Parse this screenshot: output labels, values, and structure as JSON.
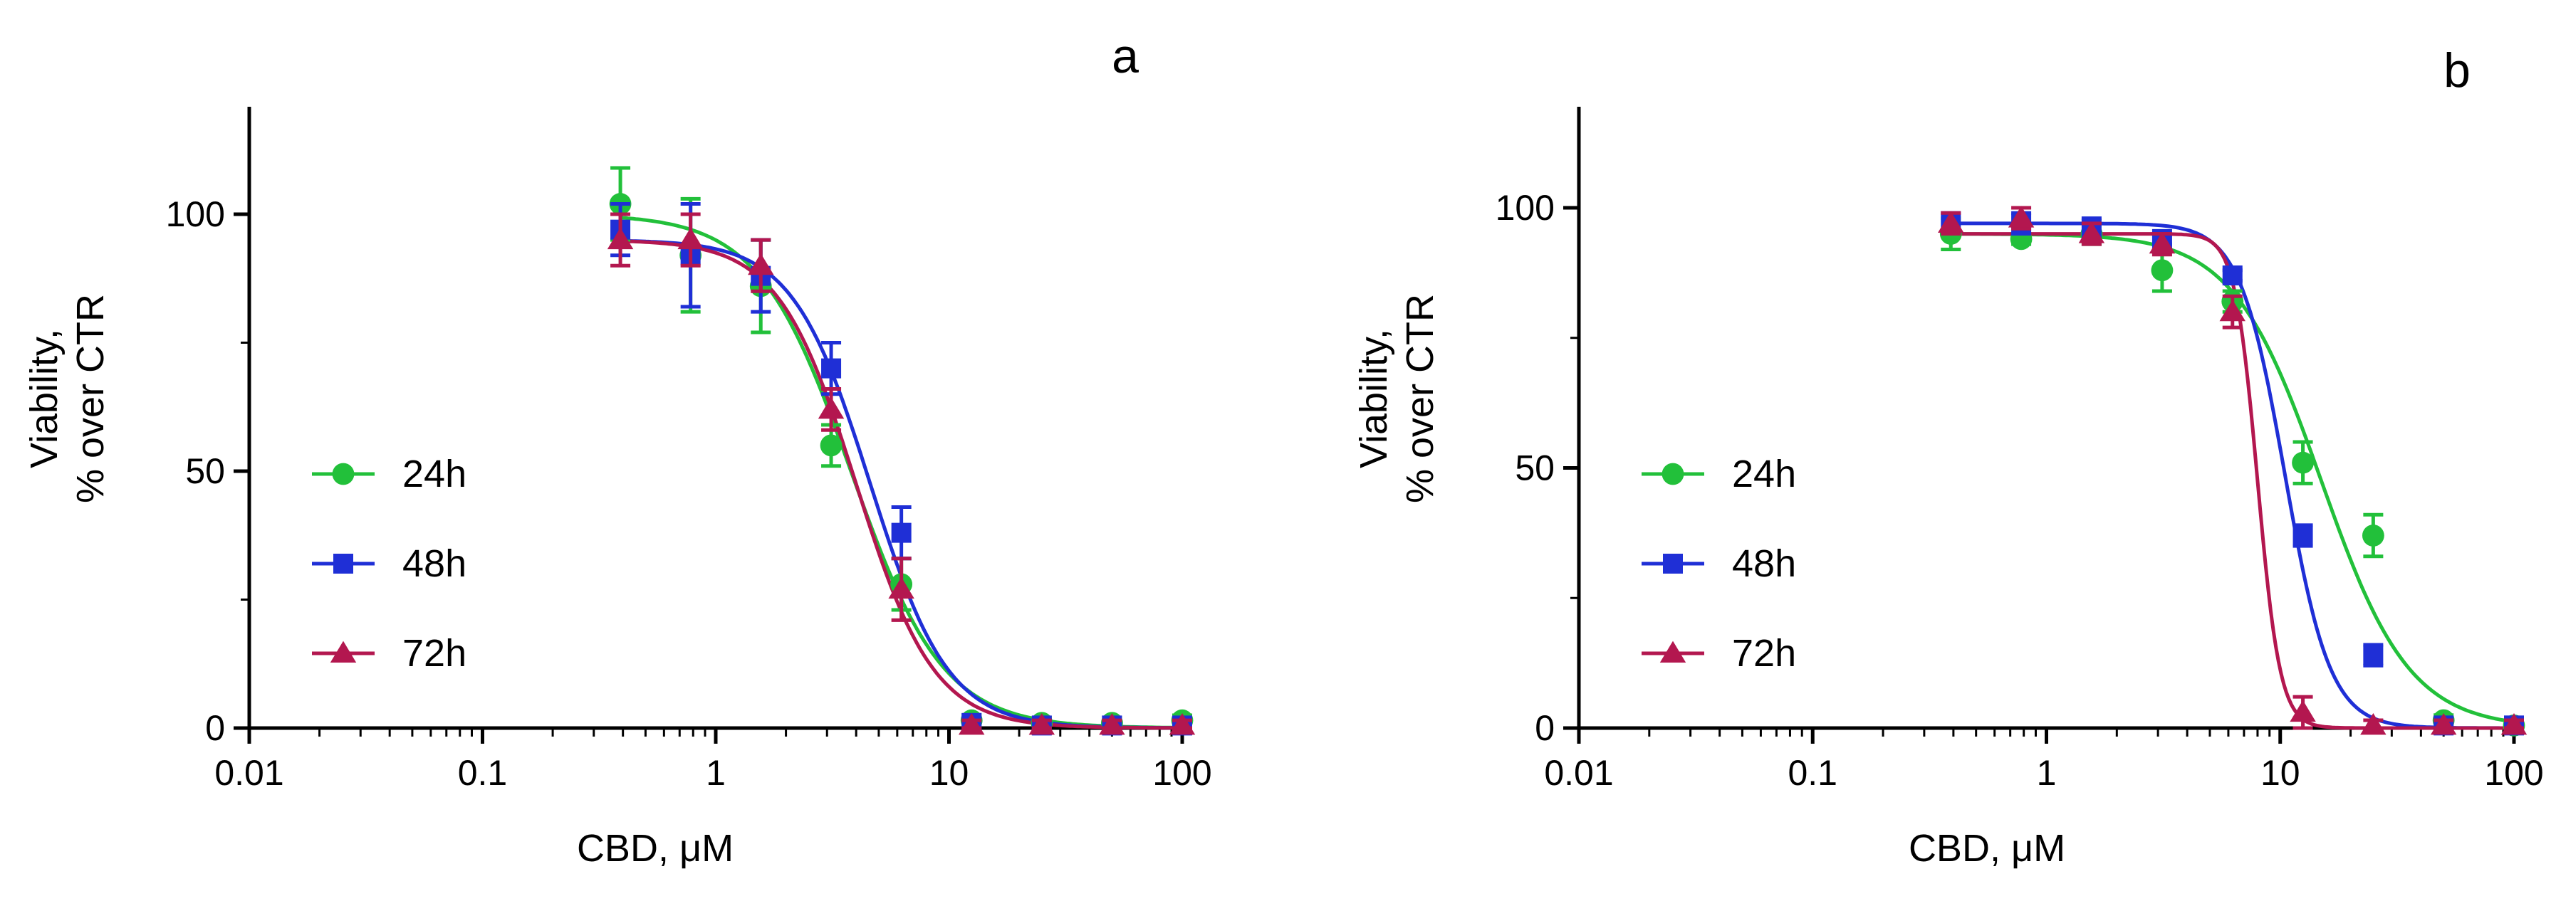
{
  "colors": {
    "24h": "#22c03a",
    "48h": "#1f2fd6",
    "72h": "#b3174f"
  },
  "chart_data": [
    {
      "panel_label": "a",
      "type": "scatter",
      "xscale": "log",
      "xlim": [
        0.01,
        100
      ],
      "ylim": [
        0,
        120
      ],
      "xticks": [
        0.01,
        0.1,
        1,
        10,
        100
      ],
      "xtick_labels": [
        "0.01",
        "0.1",
        "1",
        "10",
        "100"
      ],
      "yticks": [
        0,
        50,
        100
      ],
      "ytick_labels": [
        "0",
        "50",
        "100"
      ],
      "xlabel": "CBD, μM",
      "ylabel": [
        "Viability,",
        "% over CTR"
      ],
      "x": [
        0.39,
        0.78,
        1.56,
        3.125,
        6.25,
        12.5,
        25,
        50,
        100
      ],
      "series": [
        {
          "name": "24h",
          "marker": "circle",
          "values": [
            102,
            92,
            86,
            55,
            28,
            1.5,
            1,
            1,
            1.5
          ],
          "errors": [
            7,
            11,
            9,
            4,
            5,
            1,
            1,
            1,
            1
          ],
          "fit": {
            "top": 100,
            "bottom": 0,
            "ec50": 3.8,
            "hill": 2.2
          }
        },
        {
          "name": "48h",
          "marker": "square",
          "values": [
            97,
            92,
            88,
            70,
            38,
            1,
            0.5,
            0.5,
            0.5
          ],
          "errors": [
            5,
            10,
            7,
            5,
            5,
            1,
            1,
            1,
            1
          ],
          "fit": {
            "top": 95,
            "bottom": 0,
            "ec50": 4.6,
            "hill": 2.6
          }
        },
        {
          "name": "72h",
          "marker": "triangle",
          "values": [
            95,
            95,
            90,
            62,
            27,
            0.5,
            0.5,
            0.5,
            0.5
          ],
          "errors": [
            5,
            5,
            5,
            4,
            6,
            1,
            1,
            1,
            1
          ],
          "fit": {
            "top": 95,
            "bottom": 0,
            "ec50": 4.0,
            "hill": 2.6
          }
        }
      ]
    },
    {
      "panel_label": "b",
      "type": "scatter",
      "xscale": "log",
      "xlim": [
        0.01,
        100
      ],
      "ylim": [
        0,
        120
      ],
      "xticks": [
        0.01,
        0.1,
        1,
        10,
        100
      ],
      "xtick_labels": [
        "0.01",
        "0.1",
        "1",
        "10",
        "100"
      ],
      "yticks": [
        0,
        50,
        100
      ],
      "ytick_labels": [
        "0",
        "50",
        "100"
      ],
      "xlabel": "CBD, μM",
      "ylabel": [
        "Viability,",
        "% over CTR"
      ],
      "x": [
        0.39,
        0.78,
        1.56,
        3.125,
        6.25,
        12.5,
        25,
        50,
        100
      ],
      "series": [
        {
          "name": "24h",
          "marker": "circle",
          "values": [
            95,
            94,
            95,
            88,
            82,
            51,
            37,
            1.5,
            0.5
          ],
          "errors": [
            3,
            1,
            2,
            4,
            2,
            4,
            4,
            1,
            1
          ],
          "fit": {
            "top": 95,
            "bottom": 0,
            "ec50": 15,
            "hill": 2.3
          }
        },
        {
          "name": "48h",
          "marker": "square",
          "values": [
            97,
            97,
            96,
            94,
            87,
            37,
            14,
            0.5,
            0.5
          ],
          "errors": [
            2,
            2,
            2,
            1,
            1,
            2,
            2,
            1,
            1
          ],
          "fit": {
            "top": 97,
            "bottom": 0,
            "ec50": 10.5,
            "hill": 4.5
          }
        },
        {
          "name": "72h",
          "marker": "triangle",
          "values": [
            97,
            98,
            95,
            93,
            80,
            3,
            0.5,
            0.5,
            0.5
          ],
          "errors": [
            2,
            2,
            2,
            2,
            3,
            3,
            1,
            1,
            1
          ],
          "fit": {
            "top": 95,
            "bottom": 0,
            "ec50": 8.0,
            "hill": 9
          }
        }
      ]
    }
  ]
}
